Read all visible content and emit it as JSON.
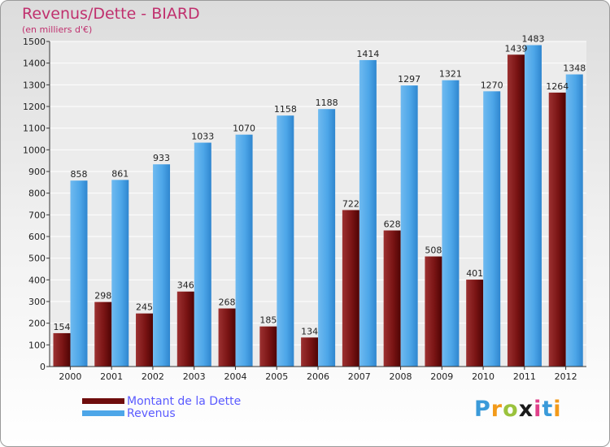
{
  "header": {
    "title": "Revenus/Dette - BIARD",
    "subtitle": "(en milliers d'€)"
  },
  "chart_data": {
    "type": "bar",
    "categories": [
      "2000",
      "2001",
      "2002",
      "2003",
      "2004",
      "2005",
      "2006",
      "2007",
      "2008",
      "2009",
      "2010",
      "2011",
      "2012"
    ],
    "series": [
      {
        "name": "Montant de la Dette",
        "color": "#8b1a1a",
        "values": [
          154,
          298,
          245,
          346,
          268,
          185,
          134,
          722,
          628,
          508,
          401,
          1439,
          1264
        ],
        "labels": [
          "154",
          "298",
          "245",
          "346",
          "268",
          "185",
          "134",
          "722",
          "628",
          "508",
          "401",
          "1439",
          "1264"
        ]
      },
      {
        "name": "Revenus",
        "color": "#4da6e8",
        "values": [
          858,
          861,
          933,
          1033,
          1070,
          1158,
          1188,
          1414,
          1297,
          1321,
          1270,
          1483,
          1348
        ],
        "labels": [
          "858",
          "861",
          "933",
          "1033",
          "1070",
          "1158",
          "1188",
          "1414",
          "1297",
          "1321",
          "1270",
          "1483",
          "1348"
        ]
      }
    ],
    "ylim": [
      0,
      1500
    ],
    "yticks": [
      0,
      100,
      200,
      300,
      400,
      500,
      600,
      700,
      800,
      900,
      1000,
      1100,
      1200,
      1300,
      1400,
      1500
    ],
    "grid": true,
    "legend_position": "bottom-left"
  },
  "legend": {
    "items": [
      {
        "label": "Montant de la Dette",
        "color": "#6e0c0c"
      },
      {
        "label": "Revenus",
        "color": "#4da6e8"
      }
    ]
  },
  "brand": {
    "letters": [
      "P",
      "r",
      "o",
      "x",
      "i",
      "t",
      "i"
    ],
    "colors": [
      "#3a9ad9",
      "#f29a1a",
      "#9ac23c",
      "#1a1a1a",
      "#e0408a",
      "#3a9ad9",
      "#f29a1a"
    ]
  }
}
